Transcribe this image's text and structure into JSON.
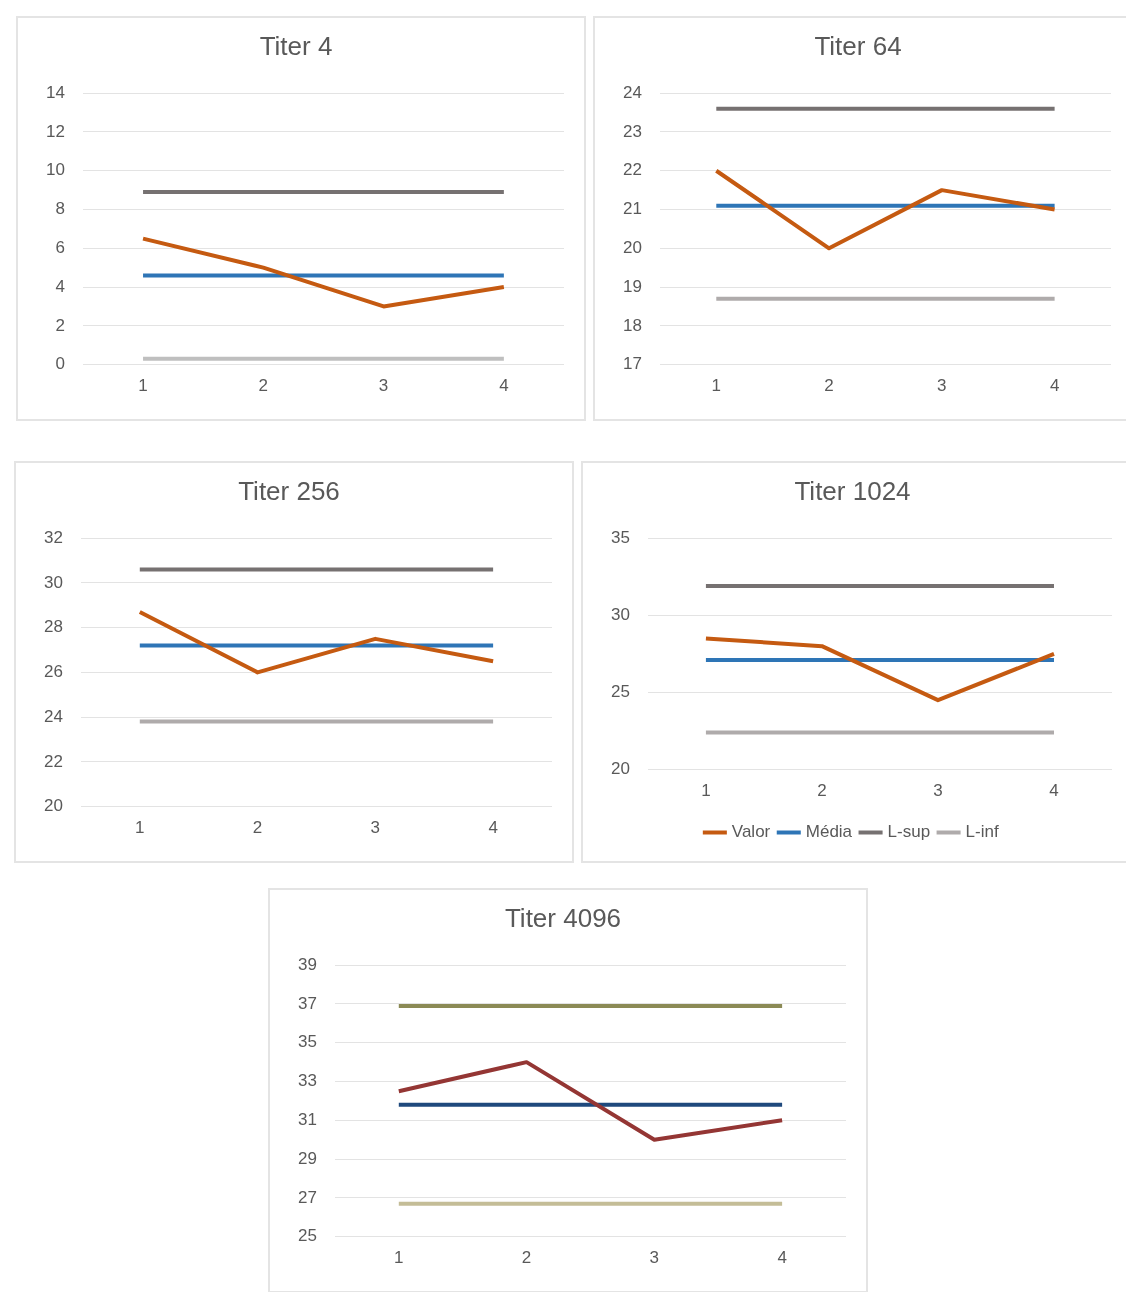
{
  "chart_data": [
    {
      "type": "line",
      "title": "Titer 4",
      "categories": [
        "1",
        "2",
        "3",
        "4"
      ],
      "ylim": [
        0,
        14
      ],
      "yticks": [
        0,
        2,
        4,
        6,
        8,
        10,
        12,
        14
      ],
      "grid": "y",
      "legend": false,
      "series": [
        {
          "color": "#c55a11",
          "values": [
            6.5,
            5,
            3,
            4
          ]
        },
        {
          "color": "#2e75b6",
          "values": [
            4.6,
            4.6,
            4.6,
            4.6
          ]
        },
        {
          "color": "#767171",
          "values": [
            8.9,
            8.9,
            8.9,
            8.9
          ]
        },
        {
          "color": "#bfbfbf",
          "values": [
            0.3,
            0.3,
            0.3,
            0.3
          ]
        }
      ]
    },
    {
      "type": "line",
      "title": "Titer 64",
      "categories": [
        "1",
        "2",
        "3",
        "4"
      ],
      "ylim": [
        17,
        24
      ],
      "yticks": [
        17,
        18,
        19,
        20,
        21,
        22,
        23,
        24
      ],
      "grid": "y",
      "legend": false,
      "series": [
        {
          "color": "#c55a11",
          "values": [
            22,
            20,
            21.5,
            21
          ]
        },
        {
          "color": "#2e75b6",
          "values": [
            21.1,
            21.1,
            21.1,
            21.1
          ]
        },
        {
          "color": "#767171",
          "values": [
            23.6,
            23.6,
            23.6,
            23.6
          ]
        },
        {
          "color": "#afabab",
          "values": [
            18.7,
            18.7,
            18.7,
            18.7
          ]
        }
      ]
    },
    {
      "type": "line",
      "title": "Titer 256",
      "categories": [
        "1",
        "2",
        "3",
        "4"
      ],
      "ylim": [
        20,
        32
      ],
      "yticks": [
        20,
        22,
        24,
        26,
        28,
        30,
        32
      ],
      "grid": "y",
      "legend": false,
      "series": [
        {
          "color": "#c55a11",
          "values": [
            28.7,
            26,
            27.5,
            26.5
          ]
        },
        {
          "color": "#2e75b6",
          "values": [
            27.2,
            27.2,
            27.2,
            27.2
          ]
        },
        {
          "color": "#767171",
          "values": [
            30.6,
            30.6,
            30.6,
            30.6
          ]
        },
        {
          "color": "#afabab",
          "values": [
            23.8,
            23.8,
            23.8,
            23.8
          ]
        }
      ]
    },
    {
      "type": "line",
      "title": "Titer 1024",
      "categories": [
        "1",
        "2",
        "3",
        "4"
      ],
      "ylim": [
        20,
        35
      ],
      "yticks": [
        20,
        25,
        30,
        35
      ],
      "grid": "y",
      "legend": "bottom",
      "series": [
        {
          "name": "Valor",
          "color": "#c55a11",
          "values": [
            28.5,
            28,
            24.5,
            27.5
          ]
        },
        {
          "name": "Média",
          "color": "#2e75b6",
          "values": [
            27.1,
            27.1,
            27.1,
            27.1
          ]
        },
        {
          "name": "L-sup",
          "color": "#767171",
          "values": [
            31.9,
            31.9,
            31.9,
            31.9
          ]
        },
        {
          "name": "L-inf",
          "color": "#afabab",
          "values": [
            22.4,
            22.4,
            22.4,
            22.4
          ]
        }
      ]
    },
    {
      "type": "line",
      "title": "Titer 4096",
      "categories": [
        "1",
        "2",
        "3",
        "4"
      ],
      "ylim": [
        25,
        39
      ],
      "yticks": [
        25,
        27,
        29,
        31,
        33,
        35,
        37,
        39
      ],
      "grid": "y",
      "legend": false,
      "series": [
        {
          "color": "#943634",
          "values": [
            32.5,
            34,
            30,
            31
          ]
        },
        {
          "color": "#1f497d",
          "values": [
            31.8,
            31.8,
            31.8,
            31.8
          ]
        },
        {
          "color": "#8b8a55",
          "values": [
            36.9,
            36.9,
            36.9,
            36.9
          ]
        },
        {
          "color": "#c4bd97",
          "values": [
            26.7,
            26.7,
            26.7,
            26.7
          ]
        }
      ]
    }
  ]
}
